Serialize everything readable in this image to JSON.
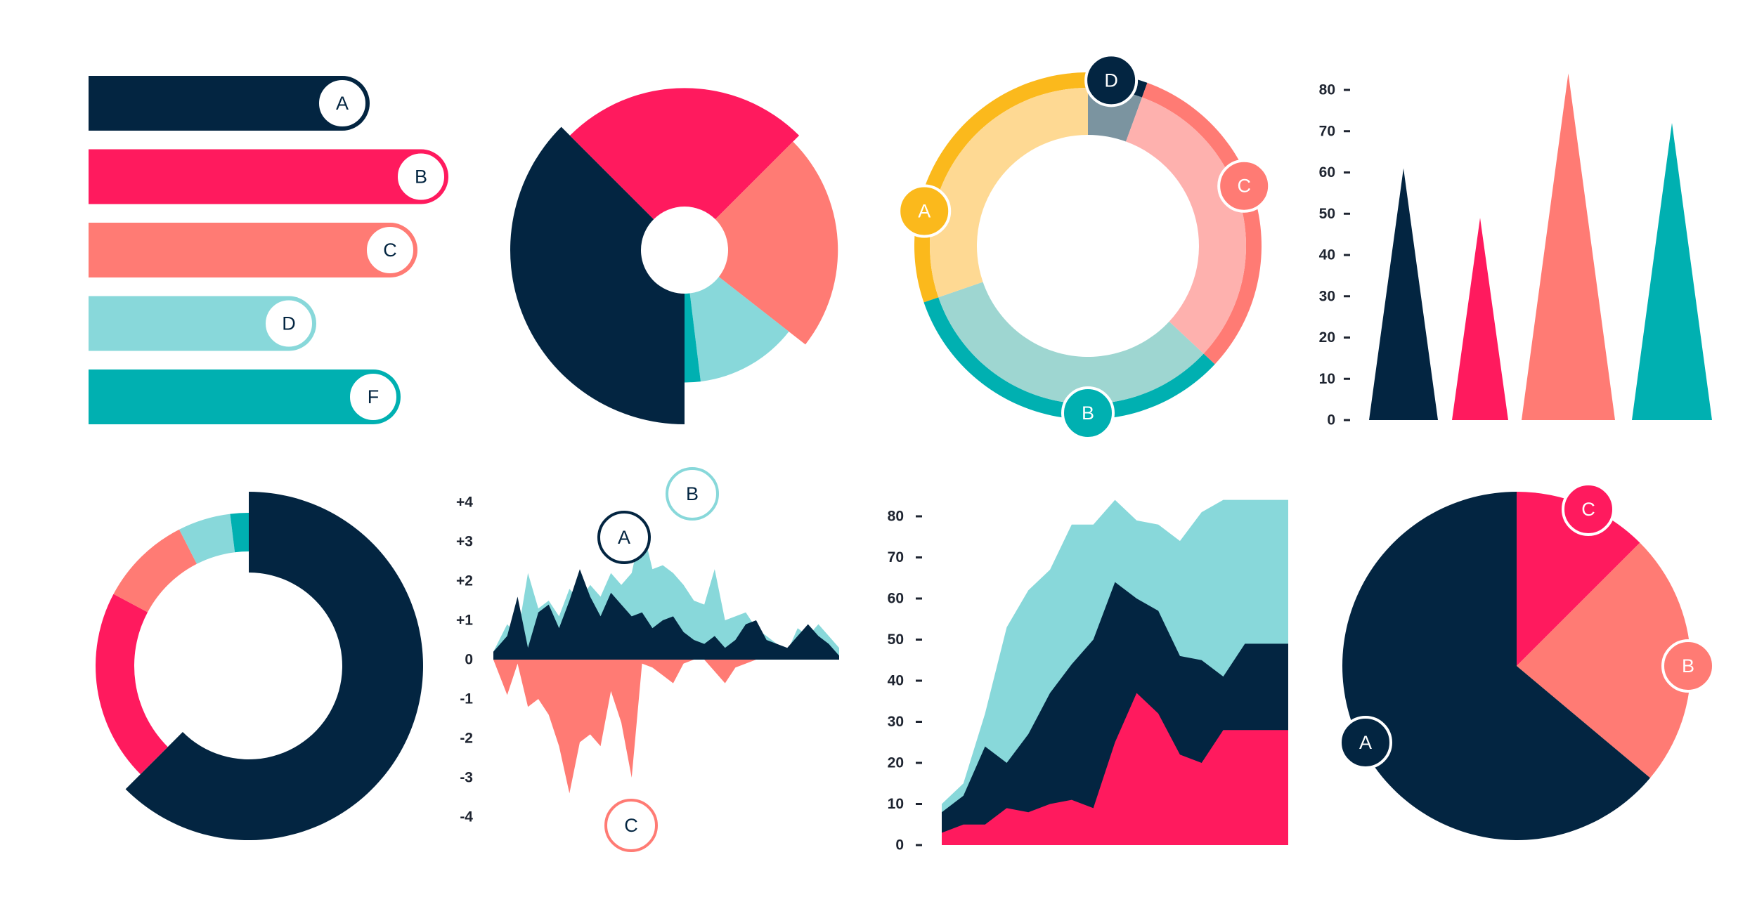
{
  "colors": {
    "navy": "#032541",
    "pink": "#ff1a5e",
    "coral": "#ff7b74",
    "aqua": "#88d8da",
    "teal": "#00b0b1",
    "amber": "#fbb91c",
    "amber_light": "#fed993",
    "coral_light": "#feb1ae",
    "aqua_light": "#9ed6d1",
    "slate": "#7b94a0",
    "axis": "#1e2430"
  },
  "chart_data": [
    {
      "id": "bars",
      "type": "bar",
      "orientation": "horizontal",
      "categories": [
        "A",
        "B",
        "C",
        "D",
        "F"
      ],
      "values": [
        100,
        128,
        117,
        81,
        111
      ],
      "colors": [
        "navy",
        "pink",
        "coral",
        "aqua",
        "teal"
      ]
    },
    {
      "id": "sunburst",
      "type": "pie",
      "style": "variable-radius donut",
      "slices": [
        {
          "color": "navy",
          "value": 135,
          "radius": 1.0
        },
        {
          "color": "pink",
          "value": 90,
          "radius": 0.93
        },
        {
          "color": "coral",
          "value": 83,
          "radius": 0.88
        },
        {
          "color": "aqua",
          "value": 45,
          "radius": 0.76
        },
        {
          "color": "teal",
          "value": 7,
          "radius": 0.76
        }
      ]
    },
    {
      "id": "ring",
      "type": "pie",
      "style": "ring",
      "labels": [
        "A",
        "B",
        "C",
        "D"
      ],
      "segments": [
        {
          "label": "D",
          "value": 20,
          "color": "navy",
          "fill": "slate"
        },
        {
          "label": "C",
          "value": 113,
          "color": "coral",
          "fill": "coral_light"
        },
        {
          "label": "B",
          "value": 118,
          "color": "teal",
          "fill": "aqua_light"
        },
        {
          "label": "A",
          "value": 109,
          "color": "amber",
          "fill": "amber_light"
        }
      ]
    },
    {
      "id": "triangles",
      "type": "bar",
      "style": "triangle",
      "values": [
        61,
        49,
        84,
        72
      ],
      "colors": [
        "navy",
        "pink",
        "coral",
        "teal"
      ],
      "ylim": [
        0,
        80
      ],
      "yticks": [
        "0",
        "10",
        "20",
        "30",
        "40",
        "50",
        "60",
        "70",
        "80"
      ]
    },
    {
      "id": "radial",
      "type": "pie",
      "style": "donut",
      "slices": [
        {
          "color": "navy",
          "value": 225
        },
        {
          "color": "pink",
          "value": 73
        },
        {
          "color": "coral",
          "value": 35
        },
        {
          "color": "aqua",
          "value": 20
        },
        {
          "color": "teal",
          "value": 7
        }
      ]
    },
    {
      "id": "mountain",
      "type": "area",
      "yticks": [
        "+4",
        "+3",
        "+2",
        "+1",
        "0",
        "-1",
        "-2",
        "-3",
        "-4"
      ],
      "ylim": [
        -4,
        4
      ],
      "x": [
        0,
        4,
        7,
        10,
        13,
        16,
        19,
        22,
        25,
        28,
        31,
        34,
        37,
        40,
        43,
        46,
        49,
        52,
        55,
        58,
        61,
        64,
        67,
        70,
        73,
        76,
        79,
        82,
        85,
        88,
        91,
        94,
        97,
        100
      ],
      "series": [
        {
          "label": "B",
          "color": "aqua",
          "values": [
            0.2,
            0.9,
            0.6,
            2.2,
            1.3,
            1.5,
            1.1,
            1.8,
            1.5,
            1.9,
            1.6,
            2.2,
            1.9,
            2.2,
            3.4,
            2.3,
            2.4,
            2.2,
            1.9,
            1.5,
            1.4,
            2.3,
            1.0,
            1.1,
            1.2,
            0.8,
            0.6,
            0.4,
            0.2,
            0.8,
            0.6,
            0.9,
            0.6,
            0.3
          ]
        },
        {
          "label": "A",
          "color": "navy",
          "values": [
            0.2,
            0.6,
            1.6,
            0.3,
            1.2,
            1.4,
            0.8,
            1.5,
            2.3,
            1.6,
            1.1,
            1.7,
            1.4,
            1.1,
            1.2,
            0.8,
            1.0,
            1.1,
            0.7,
            0.5,
            0.4,
            0.6,
            0.3,
            0.5,
            0.9,
            1.0,
            0.5,
            0.4,
            0.3,
            0.6,
            0.9,
            0.6,
            0.4,
            0.1
          ]
        },
        {
          "label": "C",
          "color": "coral",
          "values": [
            0.0,
            -0.9,
            -0.1,
            -1.2,
            -1.0,
            -1.4,
            -2.2,
            -3.4,
            -2.1,
            -1.9,
            -2.2,
            -0.8,
            -1.6,
            -3.0,
            -0.1,
            -0.2,
            -0.4,
            -0.6,
            -0.1,
            0.0,
            0.0,
            -0.3,
            -0.6,
            -0.2,
            -0.1,
            0.0,
            0.0,
            0.0,
            0.0,
            0.0,
            0.0,
            0.0,
            0.0,
            0.0
          ]
        }
      ]
    },
    {
      "id": "stacked",
      "type": "area",
      "stacked": true,
      "ylim": [
        0,
        80
      ],
      "yticks": [
        "0",
        "10",
        "20",
        "30",
        "40",
        "50",
        "60",
        "70",
        "80"
      ],
      "x": [
        0,
        1,
        2,
        3,
        4,
        5,
        6,
        7,
        8,
        9,
        10,
        11,
        12,
        13,
        14,
        15,
        16
      ],
      "series": [
        {
          "color": "pink",
          "values": [
            3,
            5,
            5,
            9,
            8,
            10,
            11,
            9,
            25,
            37,
            32,
            22,
            20,
            28,
            28,
            28,
            28
          ]
        },
        {
          "color": "navy",
          "values": [
            8,
            12,
            24,
            20,
            27,
            37,
            44,
            50,
            64,
            60,
            57,
            46,
            45,
            41,
            49,
            49,
            49
          ]
        },
        {
          "color": "aqua",
          "values": [
            10,
            15,
            32,
            53,
            62,
            67,
            78,
            78,
            84,
            79,
            78,
            74,
            81,
            84,
            84,
            84,
            84
          ]
        }
      ]
    },
    {
      "id": "pie",
      "type": "pie",
      "labels": [
        "A",
        "B",
        "C"
      ],
      "slices": [
        {
          "label": "C",
          "value": 45,
          "color": "pink"
        },
        {
          "label": "B",
          "value": 85,
          "color": "coral"
        },
        {
          "label": "A",
          "value": 230,
          "color": "navy"
        }
      ]
    }
  ]
}
